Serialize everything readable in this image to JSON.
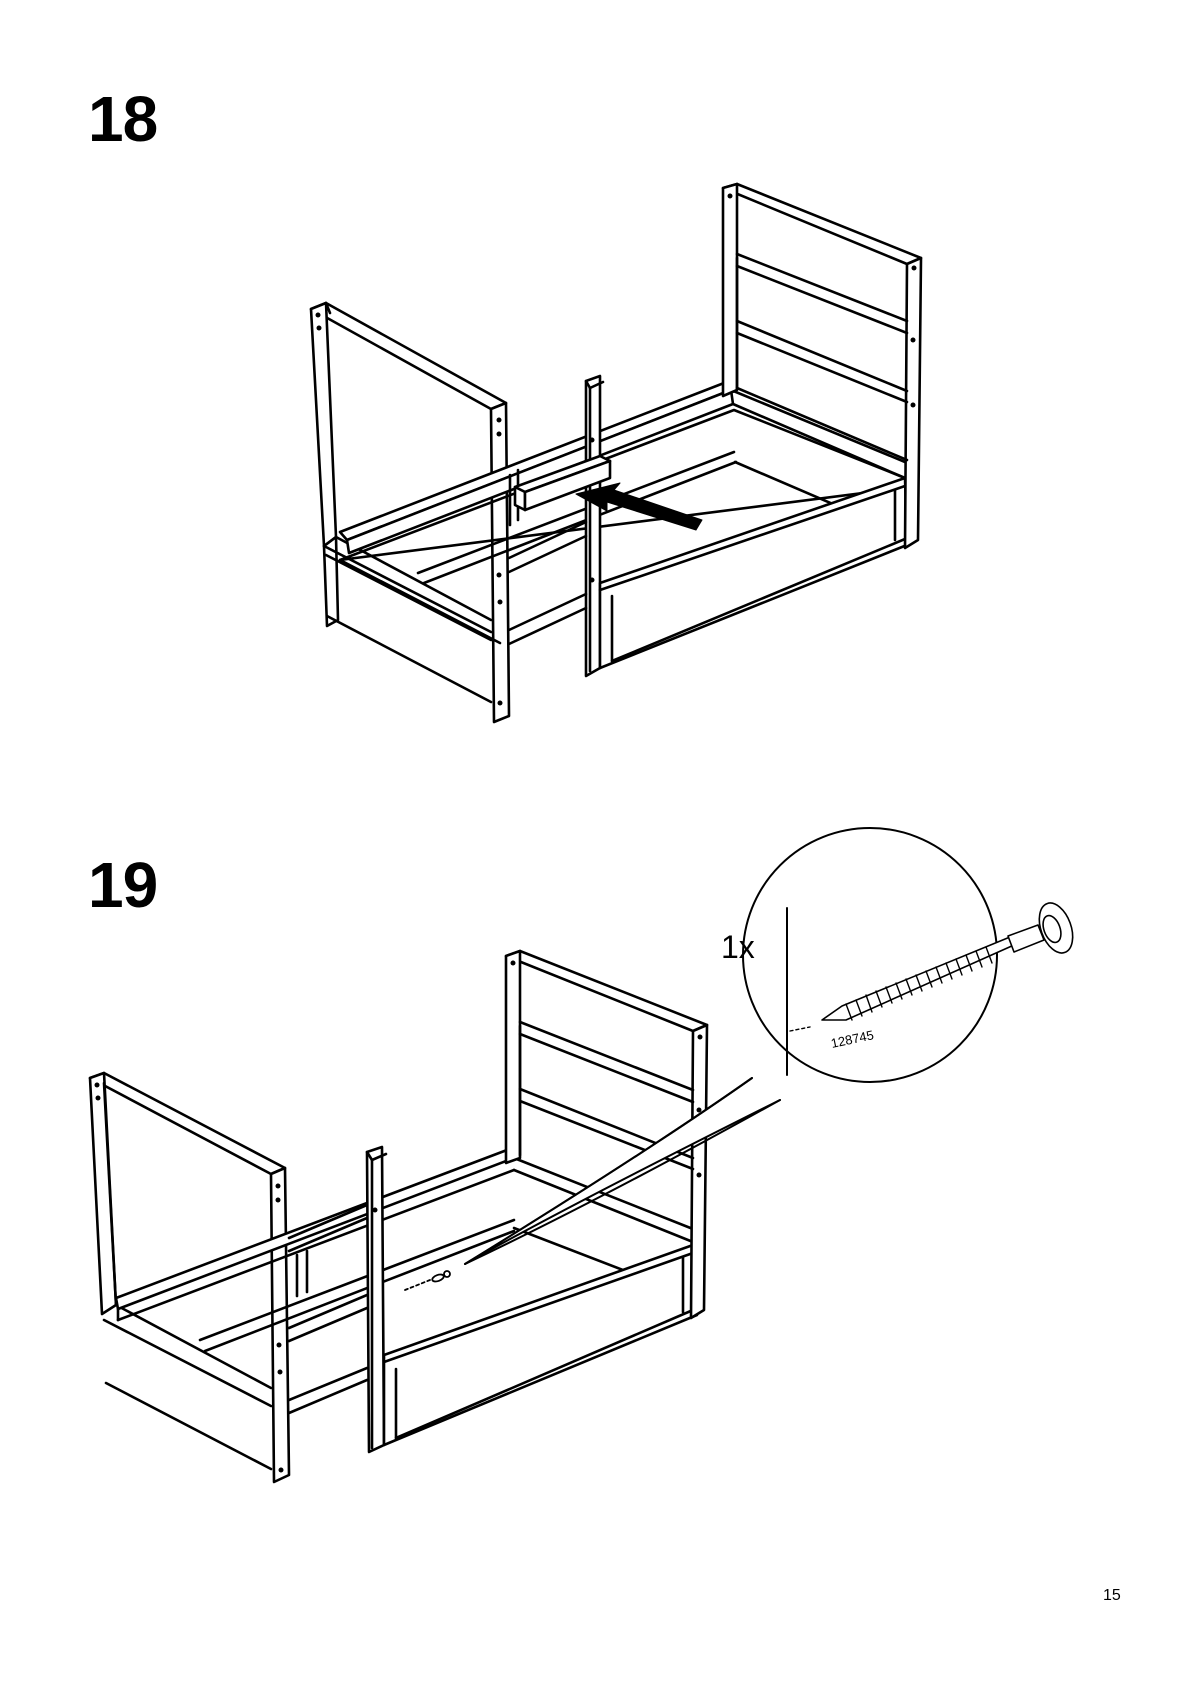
{
  "steps": [
    {
      "number": "18"
    },
    {
      "number": "19",
      "quantity": "1x",
      "part_number": "128745"
    }
  ],
  "page_number": "15",
  "colors": {
    "ink": "#000000",
    "paper": "#ffffff"
  },
  "icons": [
    "insertion-arrow-icon",
    "screw-icon",
    "magnifier-callout-icon"
  ]
}
